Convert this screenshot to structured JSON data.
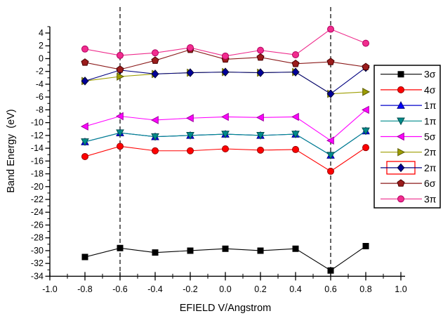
{
  "chart_data": {
    "type": "line",
    "title": "",
    "xlabel": "EFIELD V/Angstrom",
    "ylabel": "Band Energy  (eV)",
    "xlim": [
      -1.0,
      1.0
    ],
    "ylim": [
      -34,
      5
    ],
    "x_major_ticks": [
      -1.0,
      -0.8,
      -0.6,
      -0.4,
      -0.2,
      0.0,
      0.2,
      0.4,
      0.6,
      0.8,
      1.0
    ],
    "x_minor_tick_step": 0.1,
    "y_major_ticks": [
      4,
      2,
      0,
      -2,
      -4,
      -6,
      -8,
      -10,
      -12,
      -14,
      -16,
      -18,
      -20,
      -22,
      -24,
      -26,
      -28,
      -30,
      -32,
      -34
    ],
    "y_minor_tick_step": 1,
    "grid": false,
    "reference_lines_x": [
      -0.6,
      0.6
    ],
    "legend_position": "right-outside",
    "x": [
      -0.8,
      -0.6,
      -0.4,
      -0.2,
      0.0,
      0.2,
      0.4,
      0.6,
      0.8
    ],
    "series": [
      {
        "key": "3sigma",
        "name": "3σ",
        "marker": "square",
        "color": "#000000",
        "edge": "#000000",
        "line": "#000000",
        "highlighted": false,
        "values": [
          -31.0,
          -29.6,
          -30.3,
          -30.0,
          -29.7,
          -30.0,
          -29.7,
          -33.1,
          -29.3
        ]
      },
      {
        "key": "4sigma",
        "name": "4σ",
        "marker": "circle",
        "color": "#ff0000",
        "edge": "#990000",
        "line": "#ff0000",
        "highlighted": false,
        "values": [
          -15.3,
          -13.7,
          -14.4,
          -14.4,
          -14.1,
          -14.3,
          -14.2,
          -17.6,
          -13.9
        ]
      },
      {
        "key": "1pi-a",
        "name": "1π",
        "marker": "triangle-up",
        "color": "#0000ff",
        "edge": "#000080",
        "line": "#0000cc",
        "highlighted": false,
        "values": [
          -13.0,
          -11.6,
          -12.2,
          -12.0,
          -11.8,
          -12.0,
          -11.8,
          -15.1,
          -11.3
        ]
      },
      {
        "key": "1pi-b",
        "name": "1π",
        "marker": "triangle-down",
        "color": "#008b8b",
        "edge": "#004d4d",
        "line": "#008b8b",
        "highlighted": false,
        "values": [
          -13.0,
          -11.6,
          -12.2,
          -12.0,
          -11.8,
          -12.0,
          -11.8,
          -15.1,
          -11.3
        ]
      },
      {
        "key": "5sigma",
        "name": "5σ",
        "marker": "triangle-left",
        "color": "#ff00ff",
        "edge": "#a000a0",
        "line": "#ff00ff",
        "highlighted": false,
        "values": [
          -10.6,
          -9.0,
          -9.6,
          -9.3,
          -9.1,
          -9.2,
          -9.1,
          -12.8,
          -8.0
        ]
      },
      {
        "key": "2pi-a",
        "name": "2π",
        "marker": "triangle-right",
        "color": "#9d9d00",
        "edge": "#5e5e00",
        "line": "#9d9d00",
        "highlighted": false,
        "values": [
          -3.5,
          -2.8,
          -2.4,
          -2.2,
          -2.1,
          -2.2,
          -2.1,
          -5.5,
          -5.2
        ]
      },
      {
        "key": "2pi-b",
        "name": "2π",
        "marker": "diamond",
        "color": "#000099",
        "edge": "#000033",
        "line": "#000080",
        "highlighted": true,
        "values": [
          -3.5,
          -1.8,
          -2.4,
          -2.2,
          -2.1,
          -2.2,
          -2.1,
          -5.5,
          -1.4
        ]
      },
      {
        "key": "6sigma",
        "name": "6σ",
        "marker": "pentagon",
        "color": "#9b1c1c",
        "edge": "#4a0000",
        "line": "#8b1a1a",
        "highlighted": false,
        "values": [
          -0.6,
          -1.7,
          -0.3,
          1.4,
          -0.1,
          0.2,
          -0.8,
          -0.5,
          -1.3
        ]
      },
      {
        "key": "3pi",
        "name": "3π",
        "marker": "circle",
        "color": "#f12c8e",
        "edge": "#b00060",
        "line": "#ee2c8c",
        "highlighted": false,
        "values": [
          1.5,
          0.5,
          0.9,
          1.7,
          0.4,
          1.3,
          0.6,
          4.6,
          2.4
        ]
      }
    ],
    "colors": {
      "axis": "#000000",
      "reference_line": "#000000",
      "legend_border": "#000000",
      "legend_highlight": "#ff0000",
      "background": "#ffffff"
    }
  }
}
